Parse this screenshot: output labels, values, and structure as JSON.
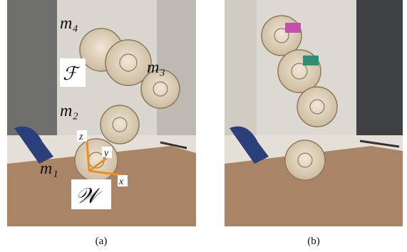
{
  "panels": [
    {
      "caption": "(a)",
      "modules": [
        "m₄",
        "m₃",
        "m₂",
        "m₁"
      ],
      "frames": [
        "ℱ",
        "𝒲"
      ],
      "axes": [
        "x",
        "y",
        "z"
      ]
    },
    {
      "caption": "(b)"
    }
  ]
}
